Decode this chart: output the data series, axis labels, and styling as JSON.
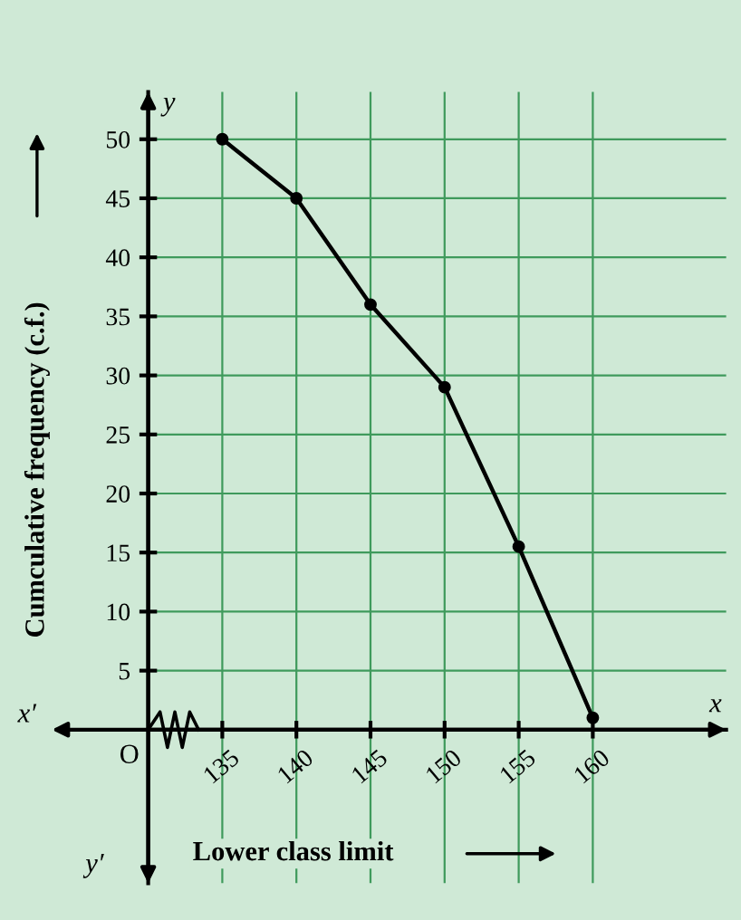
{
  "chart_data": {
    "type": "line",
    "xlabel": "Lower class limit",
    "ylabel": "Cumculative frequency (c.f.)",
    "x": [
      135,
      140,
      145,
      150,
      155,
      160
    ],
    "series": [
      {
        "color": "#000000",
        "values": [
          50,
          45,
          36,
          29,
          15.5,
          1
        ]
      }
    ],
    "xlim": [
      130,
      169
    ],
    "ylim": [
      -13,
      54
    ],
    "xticks": [
      135,
      140,
      145,
      150,
      155,
      160
    ],
    "yticks": [
      5,
      10,
      15,
      20,
      25,
      30,
      35,
      40,
      45,
      50
    ],
    "grid": true,
    "marker": "circle",
    "line_style": "solid",
    "annotations": [
      "x′",
      "x",
      "y",
      "y′",
      "O"
    ]
  }
}
